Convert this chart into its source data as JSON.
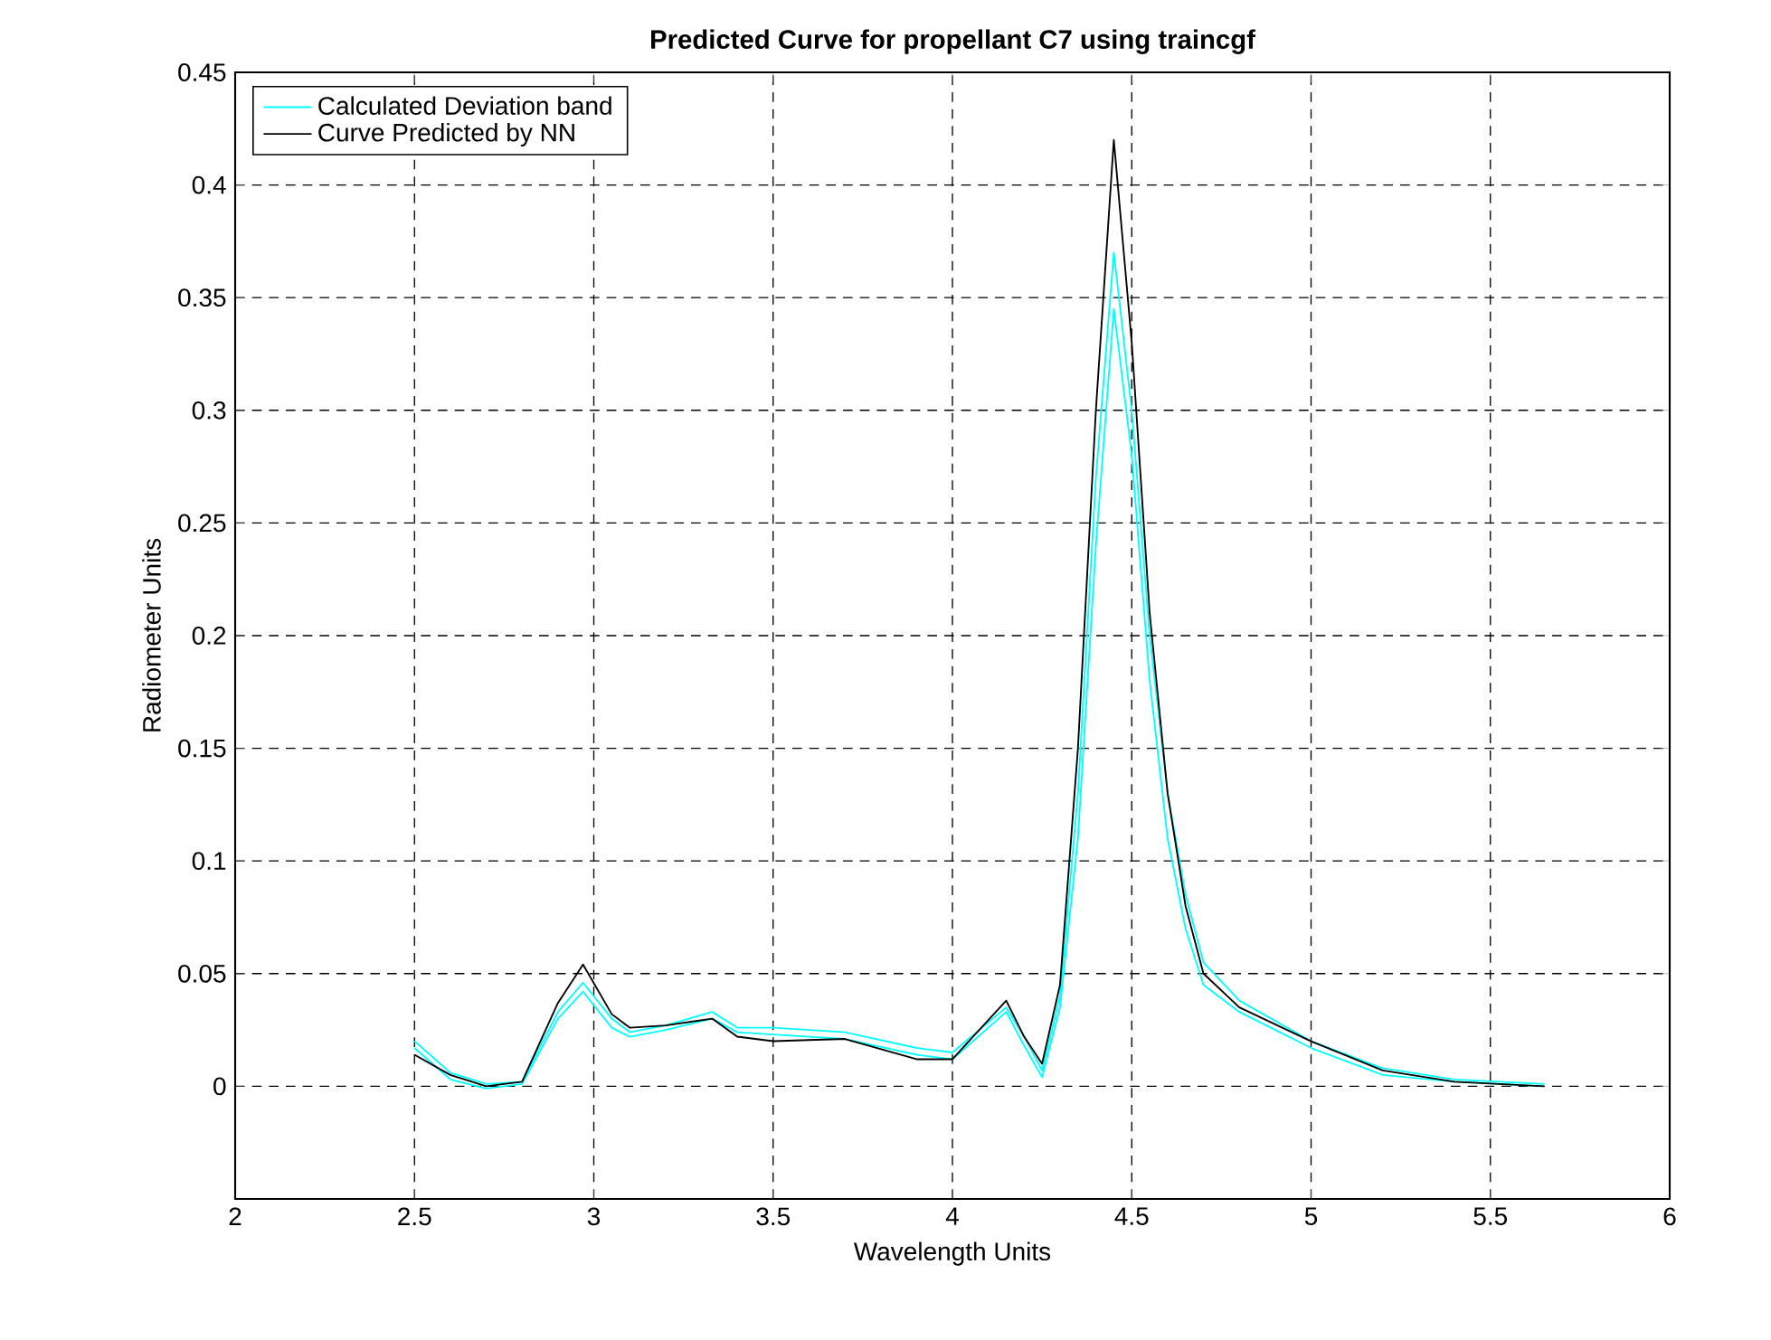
{
  "chart_data": {
    "type": "line",
    "title": "Predicted Curve for propellant C7 using traincgf",
    "xlabel": "Wavelength Units",
    "ylabel": "Radiometer Units",
    "x": [
      2.5,
      2.6,
      2.7,
      2.8,
      2.9,
      2.97,
      3.05,
      3.1,
      3.2,
      3.33,
      3.4,
      3.5,
      3.7,
      3.9,
      4.0,
      4.15,
      4.2,
      4.25,
      4.3,
      4.35,
      4.4,
      4.45,
      4.5,
      4.55,
      4.6,
      4.65,
      4.7,
      4.8,
      5.0,
      5.2,
      5.4,
      5.65
    ],
    "series": [
      {
        "name": "Calculated Deviation band",
        "color": "#00ffff",
        "values": [
          0.02,
          0.006,
          0.001,
          0.002,
          0.033,
          0.046,
          0.03,
          0.024,
          0.027,
          0.033,
          0.026,
          0.026,
          0.024,
          0.017,
          0.015,
          0.035,
          0.022,
          0.007,
          0.04,
          0.13,
          0.27,
          0.37,
          0.3,
          0.2,
          0.13,
          0.085,
          0.055,
          0.038,
          0.02,
          0.008,
          0.003,
          0.001
        ]
      },
      {
        "color": "#00ffff",
        "values": [
          0.017,
          0.003,
          -0.001,
          0.001,
          0.03,
          0.042,
          0.026,
          0.022,
          0.025,
          0.03,
          0.024,
          0.023,
          0.021,
          0.014,
          0.012,
          0.033,
          0.018,
          0.004,
          0.035,
          0.11,
          0.24,
          0.345,
          0.28,
          0.18,
          0.11,
          0.07,
          0.045,
          0.033,
          0.017,
          0.005,
          0.002,
          0.0
        ]
      },
      {
        "name": "Curve Predicted by NN",
        "color": "#000000",
        "values": [
          0.014,
          0.005,
          0.0,
          0.002,
          0.037,
          0.054,
          0.032,
          0.026,
          0.027,
          0.03,
          0.022,
          0.02,
          0.021,
          0.012,
          0.012,
          0.038,
          0.022,
          0.01,
          0.045,
          0.15,
          0.3,
          0.42,
          0.33,
          0.21,
          0.13,
          0.08,
          0.05,
          0.035,
          0.02,
          0.007,
          0.002,
          0.0
        ]
      }
    ],
    "xlim": [
      2,
      6
    ],
    "ylim": [
      -0.05,
      0.45
    ],
    "xticks": [
      2,
      2.5,
      3,
      3.5,
      4,
      4.5,
      5,
      5.5,
      6
    ],
    "yticks": [
      0,
      0.05,
      0.1,
      0.15,
      0.2,
      0.25,
      0.3,
      0.35,
      0.4,
      0.45
    ],
    "grid": true,
    "legend": "top left",
    "line_style": "solid",
    "marker": "none"
  }
}
